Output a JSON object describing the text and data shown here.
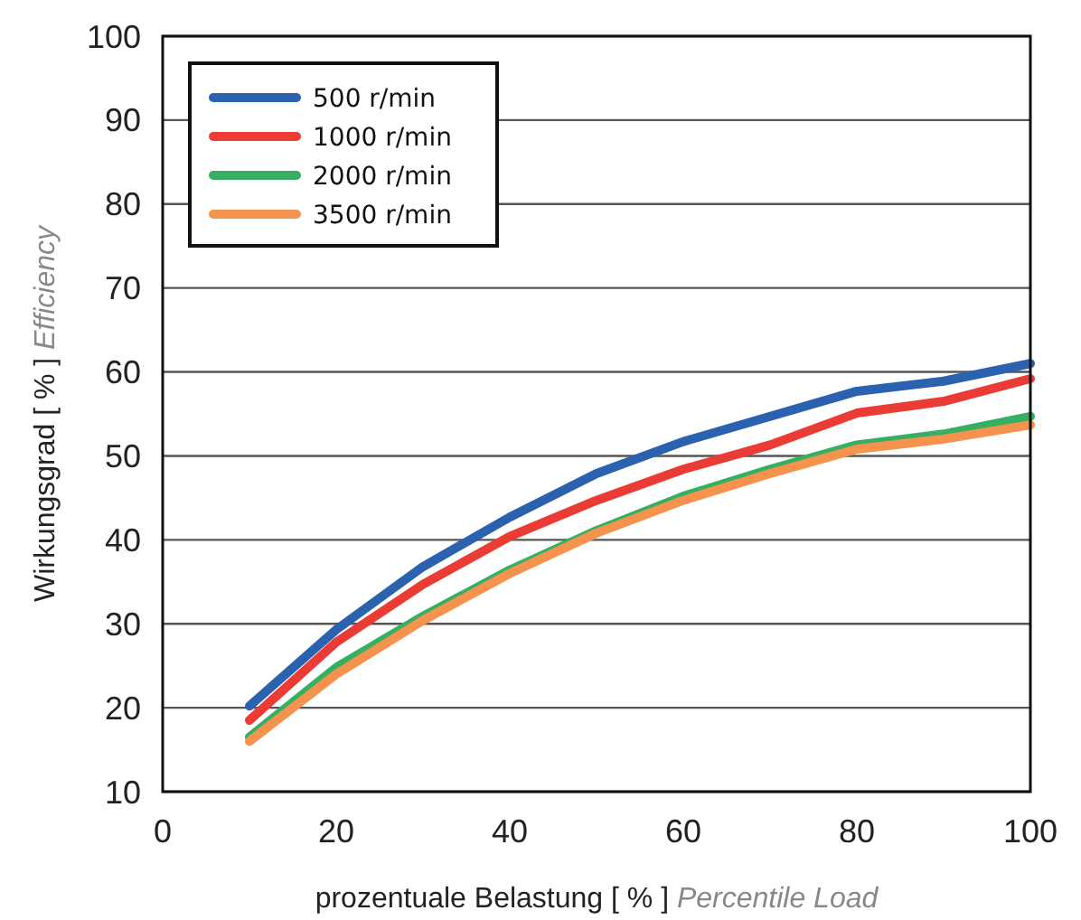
{
  "chart_data": {
    "type": "line",
    "xlabel": "prozentuale Belastung   [ % ]   Percentile Load",
    "ylabel": "Wirkungsgrad   [ % ]   Efficiency",
    "x": [
      10,
      20,
      30,
      40,
      50,
      60,
      70,
      80,
      90,
      100
    ],
    "series": [
      {
        "name": "500 r/min",
        "color": "#2a62b0",
        "values": [
          20.2,
          29.3,
          36.8,
          42.7,
          47.9,
          51.7,
          54.7,
          57.7,
          58.9,
          61.0
        ]
      },
      {
        "name": "1000 r/min",
        "color": "#ea3c35",
        "values": [
          18.5,
          27.8,
          34.7,
          40.4,
          44.7,
          48.4,
          51.3,
          55.1,
          56.5,
          59.2
        ]
      },
      {
        "name": "2000 r/min",
        "color": "#35b062",
        "values": [
          16.5,
          24.8,
          30.9,
          36.4,
          41.1,
          45.2,
          48.4,
          51.3,
          52.6,
          54.7
        ]
      },
      {
        "name": "3500 r/min",
        "color": "#f5934e",
        "values": [
          16.0,
          24.0,
          30.4,
          36.0,
          40.8,
          44.7,
          47.9,
          50.8,
          52.0,
          53.7
        ]
      }
    ],
    "xlim": [
      0,
      100
    ],
    "xticks": [
      0,
      20,
      40,
      60,
      80,
      100
    ],
    "ylim": [
      10,
      100
    ],
    "yticks": [
      10,
      20,
      30,
      40,
      50,
      60,
      70,
      80,
      90,
      100
    ],
    "grid": "y",
    "legend": "top left",
    "marker": "none",
    "line_style": "solid"
  }
}
